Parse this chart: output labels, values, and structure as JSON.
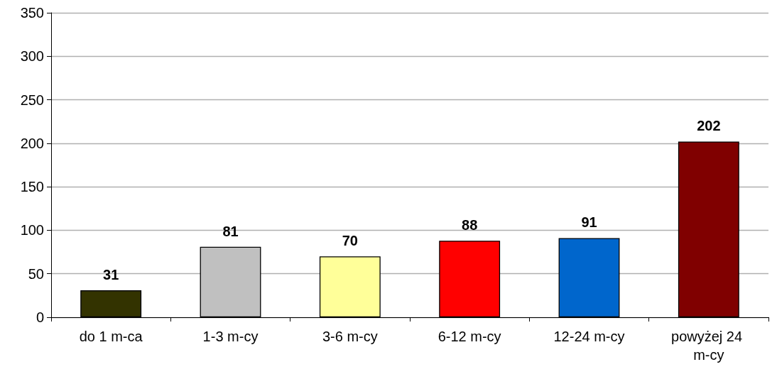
{
  "chart_data": {
    "type": "bar",
    "categories": [
      "do 1 m-ca",
      "1-3 m-cy",
      "3-6 m-cy",
      "6-12 m-cy",
      "12-24 m-cy",
      "powyżej 24 m-cy"
    ],
    "values": [
      31,
      81,
      70,
      88,
      91,
      202
    ],
    "colors": [
      "#333300",
      "#c0c0c0",
      "#ffff99",
      "#ff0000",
      "#0066cc",
      "#800000"
    ],
    "ylim": [
      0,
      350
    ],
    "yticks": [
      0,
      50,
      100,
      150,
      200,
      250,
      300,
      350
    ],
    "grid": "y",
    "data_labels": true
  }
}
